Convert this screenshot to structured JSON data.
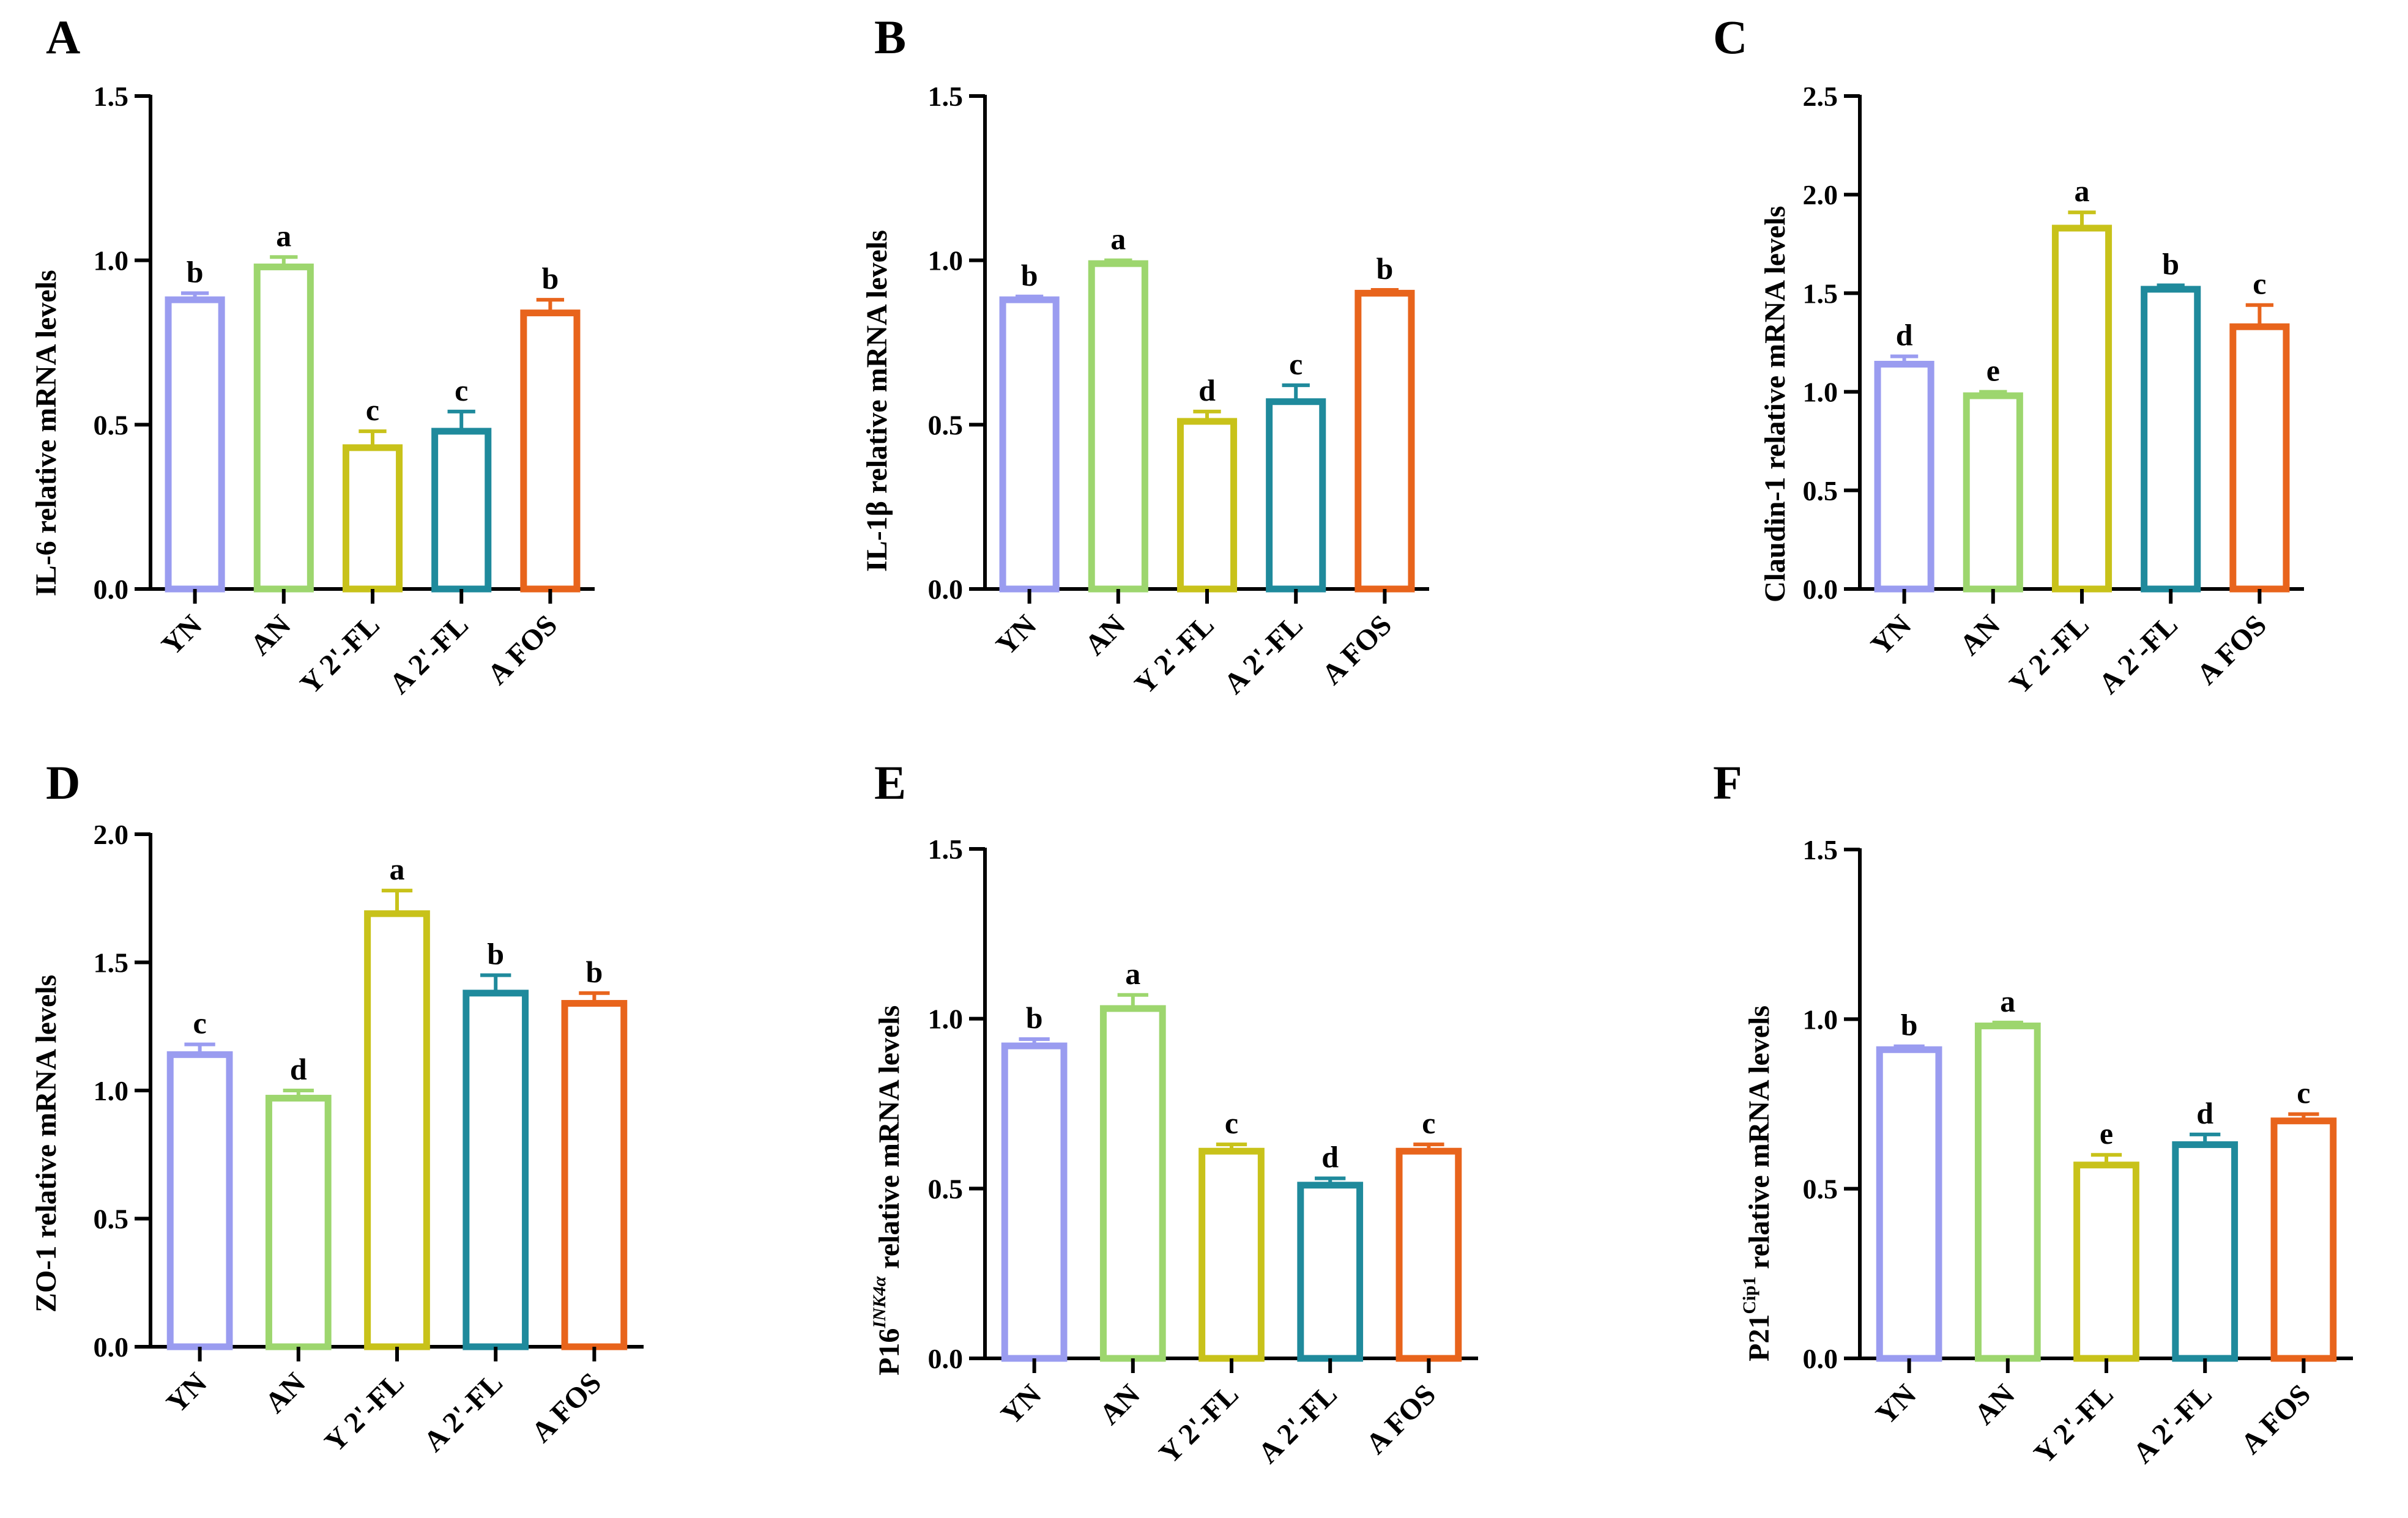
{
  "figure": {
    "categories": [
      "YN",
      "AN",
      "Y 2'-FL",
      "A 2'-FL",
      "A FOS"
    ],
    "colors": [
      "#9a9cf0",
      "#9dd66e",
      "#c8c21a",
      "#1f8a9c",
      "#e8641c"
    ]
  },
  "chart_data": [
    {
      "type": "bar",
      "panel": "A",
      "ylabel": "IL-6 relative mRNA levels",
      "categories": [
        "YN",
        "AN",
        "Y 2'-FL",
        "A 2'-FL",
        "A FOS"
      ],
      "values": [
        0.88,
        0.98,
        0.43,
        0.48,
        0.84
      ],
      "errors": [
        0.02,
        0.03,
        0.05,
        0.06,
        0.04
      ],
      "significance": [
        "b",
        "a",
        "c",
        "c",
        "b"
      ],
      "ylim": [
        0,
        1.5
      ],
      "yticks": [
        0,
        0.5,
        1.0,
        1.5
      ],
      "ytick_labels": [
        "0.0",
        "0.5",
        "1.0",
        "1.5"
      ]
    },
    {
      "type": "bar",
      "panel": "B",
      "ylabel": "IL-1β relative mRNA levels",
      "categories": [
        "YN",
        "AN",
        "Y 2'-FL",
        "A 2'-FL",
        "A FOS"
      ],
      "values": [
        0.88,
        0.99,
        0.51,
        0.57,
        0.9
      ],
      "errors": [
        0.01,
        0.01,
        0.03,
        0.05,
        0.01
      ],
      "significance": [
        "b",
        "a",
        "d",
        "c",
        "b"
      ],
      "ylim": [
        0,
        1.5
      ],
      "yticks": [
        0,
        0.5,
        1.0,
        1.5
      ],
      "ytick_labels": [
        "0.0",
        "0.5",
        "1.0",
        "1.5"
      ]
    },
    {
      "type": "bar",
      "panel": "C",
      "ylabel": "Claudin-1 relative mRNA levels",
      "categories": [
        "YN",
        "AN",
        "Y 2'-FL",
        "A 2'-FL",
        "A FOS"
      ],
      "values": [
        1.14,
        0.98,
        1.83,
        1.52,
        1.33
      ],
      "errors": [
        0.04,
        0.02,
        0.08,
        0.02,
        0.11
      ],
      "significance": [
        "d",
        "e",
        "a",
        "b",
        "c"
      ],
      "ylim": [
        0,
        2.5
      ],
      "yticks": [
        0,
        0.5,
        1.0,
        1.5,
        2.0,
        2.5
      ],
      "ytick_labels": [
        "0.0",
        "0.5",
        "1.0",
        "1.5",
        "2.0",
        "2.5"
      ]
    },
    {
      "type": "bar",
      "panel": "D",
      "ylabel": "ZO-1 relative mRNA levels",
      "categories": [
        "YN",
        "AN",
        "Y 2'-FL",
        "A 2'-FL",
        "A FOS"
      ],
      "values": [
        1.14,
        0.97,
        1.69,
        1.38,
        1.34
      ],
      "errors": [
        0.04,
        0.03,
        0.09,
        0.07,
        0.04
      ],
      "significance": [
        "c",
        "d",
        "a",
        "b",
        "b"
      ],
      "ylim": [
        0,
        2.0
      ],
      "yticks": [
        0,
        0.5,
        1.0,
        1.5,
        2.0
      ],
      "ytick_labels": [
        "0.0",
        "0.5",
        "1.0",
        "1.5",
        "2.0"
      ]
    },
    {
      "type": "bar",
      "panel": "E",
      "ylabel": "P16",
      "ylabel_sup": "INK4α",
      "ylabel_suffix": " relative mRNA levels",
      "categories": [
        "YN",
        "AN",
        "Y 2'-FL",
        "A 2'-FL",
        "A FOS"
      ],
      "values": [
        0.92,
        1.03,
        0.61,
        0.51,
        0.61
      ],
      "errors": [
        0.02,
        0.04,
        0.02,
        0.02,
        0.02
      ],
      "significance": [
        "b",
        "a",
        "c",
        "d",
        "c"
      ],
      "ylim": [
        0,
        1.5
      ],
      "yticks": [
        0,
        0.5,
        1.0,
        1.5
      ],
      "ytick_labels": [
        "0.0",
        "0.5",
        "1.0",
        "1.5"
      ]
    },
    {
      "type": "bar",
      "panel": "F",
      "ylabel": "P21",
      "ylabel_sup": "Cip1",
      "ylabel_suffix": " relative mRNA levels",
      "categories": [
        "YN",
        "AN",
        "Y 2'-FL",
        "A 2'-FL",
        "A FOS"
      ],
      "values": [
        0.91,
        0.98,
        0.57,
        0.63,
        0.7
      ],
      "errors": [
        0.01,
        0.01,
        0.03,
        0.03,
        0.02
      ],
      "significance": [
        "b",
        "a",
        "e",
        "d",
        "c"
      ],
      "ylim": [
        0,
        1.5
      ],
      "yticks": [
        0,
        0.5,
        1.0,
        1.5
      ],
      "ytick_labels": [
        "0.0",
        "0.5",
        "1.0",
        "1.5"
      ]
    }
  ]
}
